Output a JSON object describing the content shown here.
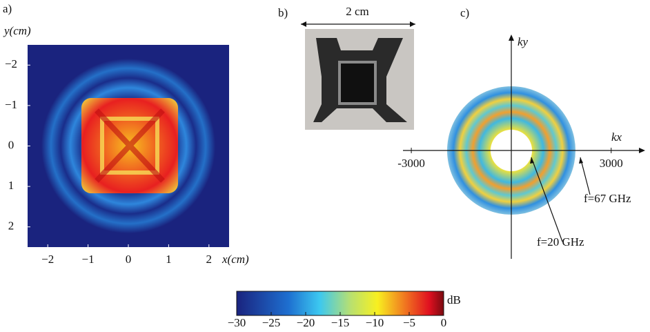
{
  "panel_a": {
    "label": "a)",
    "y_label": "y(cm)",
    "x_label": "x(cm)",
    "xlim": [
      -2.5,
      2.5
    ],
    "ylim": [
      -2.5,
      2.5
    ],
    "xticks": [
      {
        "value": -2,
        "label": "−2"
      },
      {
        "value": -1,
        "label": "−1"
      },
      0,
      1,
      2
    ],
    "yticks": [
      {
        "value": -2,
        "label": "−2"
      },
      {
        "value": -1,
        "label": "−1"
      },
      0,
      1,
      2
    ]
  },
  "panel_b": {
    "label": "b)",
    "scale_label": "2 cm"
  },
  "panel_c": {
    "label": "c)",
    "x_label": "kx",
    "y_label": "ky",
    "xlim": [
      -3300,
      4000
    ],
    "xticks": [
      {
        "value": -3000,
        "label": "-3000"
      },
      3000
    ],
    "annotations": [
      "f=20 GHz",
      "f=67 GHz"
    ]
  },
  "colorbar": {
    "label": "dB",
    "lim": [
      -30,
      0
    ],
    "ticks": [
      {
        "value": -30,
        "label": "−30"
      },
      {
        "value": -25,
        "label": "−25"
      },
      {
        "value": -20,
        "label": "−20"
      },
      {
        "value": -15,
        "label": "−15"
      },
      {
        "value": -10,
        "label": "−10"
      },
      {
        "value": -5,
        "label": "−5"
      },
      0
    ]
  }
}
